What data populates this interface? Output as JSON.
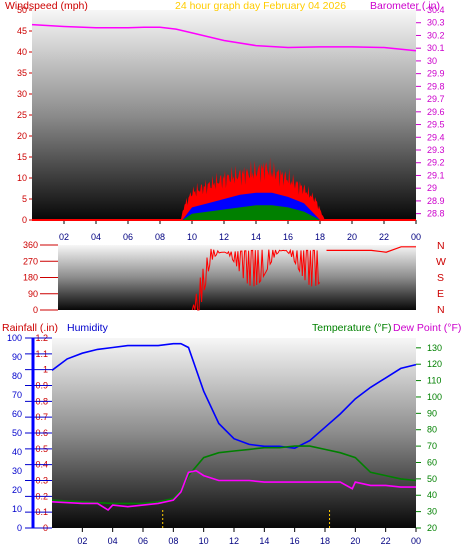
{
  "header": {
    "left_title": "Windspeed (mph)",
    "center_title": "24 hour graph day   February 04 2026",
    "right_title": "Barometer (.in)"
  },
  "panel3_titles": {
    "rain": "Rainfall (.in)",
    "humidity": "Humidity",
    "temp": "Temperature (°F)",
    "dew": "Dew Point (°F)"
  },
  "compass": [
    "N",
    "W",
    "S",
    "E",
    "N"
  ],
  "colors": {
    "wind_gust": "#ff0000",
    "wind_avg": "#0000ff",
    "wind_low": "#008000",
    "barometer": "#ff00ff",
    "direction": "#ff0000",
    "humidity": "#0000ff",
    "temperature": "#008000",
    "dewpoint": "#ff00ff",
    "rain": "#0000ff",
    "title_yellow": "#ffcc00",
    "accent_red": "#cc0000"
  },
  "chart_data": [
    {
      "type": "area",
      "title": "24 hour graph day   February 04 2026",
      "x_ticks": [
        "02",
        "04",
        "06",
        "08",
        "10",
        "12",
        "14",
        "16",
        "18",
        "20",
        "22",
        "00"
      ],
      "y_left_label": "Windspeed (mph)",
      "y_left_ticks": [
        0,
        5,
        10,
        15,
        20,
        25,
        30,
        35,
        40,
        45,
        50
      ],
      "y_right_label": "Barometer (.in)",
      "y_right_ticks": [
        "28.8",
        "28.9",
        "29",
        "29.1",
        "29.2",
        "29.3",
        "29.4",
        "29.5",
        "29.6",
        "29.7",
        "29.8",
        "29.9",
        "30",
        "30.1",
        "30.2",
        "30.3",
        "30.4"
      ],
      "series": [
        {
          "name": "Gust",
          "hours": [
            0,
            9.3,
            9.5,
            10,
            11,
            12,
            13,
            14,
            14.6,
            15,
            16,
            17,
            17.7,
            18,
            18.3,
            24
          ],
          "values": [
            0,
            0,
            4,
            8,
            10,
            12,
            13,
            14,
            15,
            14,
            12,
            9,
            6,
            3,
            0,
            0
          ]
        },
        {
          "name": "Average",
          "hours": [
            0,
            9.4,
            10,
            11,
            12,
            13,
            14,
            15,
            16,
            17,
            18,
            24
          ],
          "values": [
            0,
            0,
            3,
            4,
            5,
            6,
            6.5,
            6.5,
            5.5,
            4,
            0,
            0
          ]
        },
        {
          "name": "Lull",
          "hours": [
            0,
            9.4,
            10,
            11,
            12,
            13,
            14,
            15,
            16,
            17,
            18,
            24
          ],
          "values": [
            0,
            0,
            1.5,
            2,
            2.5,
            3,
            3.5,
            3.5,
            3,
            2,
            0,
            0
          ]
        },
        {
          "name": "Barometer",
          "hours": [
            0,
            2,
            4,
            6,
            7,
            8,
            9,
            10,
            12,
            14,
            16,
            18,
            20,
            22,
            24
          ],
          "values": [
            30.285,
            30.27,
            30.26,
            30.26,
            30.265,
            30.265,
            30.25,
            30.22,
            30.16,
            30.12,
            30.105,
            30.11,
            30.11,
            30.105,
            30.08
          ]
        }
      ]
    },
    {
      "type": "line",
      "x_ticks": [
        "02",
        "04",
        "06",
        "08",
        "10",
        "12",
        "14",
        "16",
        "18",
        "20",
        "22",
        "00"
      ],
      "y_ticks": [
        0,
        90,
        180,
        270,
        360
      ],
      "series": [
        {
          "name": "Wind direction",
          "hours": [
            9.0,
            9.6,
            10.2,
            11.0,
            12.0,
            13.0,
            14.0,
            15.0,
            16.0,
            17.0,
            18.0,
            19.0,
            20.0,
            21.0,
            22.0,
            23.0,
            24.0
          ],
          "values": [
            0,
            200,
            340,
            320,
            325,
            330,
            335,
            330,
            330,
            330,
            330,
            330,
            330,
            330,
            320,
            350,
            350
          ]
        }
      ]
    },
    {
      "type": "line",
      "x_ticks": [
        "02",
        "04",
        "06",
        "08",
        "10",
        "12",
        "14",
        "16",
        "18",
        "20",
        "22",
        "00"
      ],
      "y_left_ticks": [
        0,
        10,
        20,
        30,
        40,
        50,
        60,
        70,
        80,
        90,
        100
      ],
      "y_rain_ticks": [
        "0",
        "0.1",
        "0.2",
        "0.3",
        "0.4",
        "0.5",
        "0.6",
        "0.7",
        "0.8",
        "0.9",
        "1",
        "1.1",
        "1.2"
      ],
      "y_right_ticks": [
        20,
        30,
        40,
        50,
        60,
        70,
        80,
        90,
        100,
        110,
        120,
        130
      ],
      "series": [
        {
          "name": "Humidity",
          "hours": [
            0,
            1,
            2,
            3,
            4,
            5,
            6,
            7,
            8,
            8.5,
            9,
            10,
            11,
            12,
            13,
            14,
            15,
            16,
            17,
            18,
            19,
            20,
            21,
            22,
            23,
            24
          ],
          "values": [
            83,
            89,
            92,
            94,
            95,
            96,
            96,
            96,
            97,
            97,
            95,
            72,
            55,
            47,
            44,
            43,
            43,
            42,
            46,
            53,
            60,
            68,
            74,
            79,
            84,
            86
          ]
        },
        {
          "name": "Temperature",
          "hours": [
            0,
            2,
            4,
            5,
            6,
            7,
            8,
            8.5,
            9,
            10,
            11,
            12,
            13,
            14,
            15,
            16,
            17,
            18,
            19,
            20,
            21,
            22,
            23,
            24
          ],
          "values": [
            37,
            36,
            35,
            35,
            35,
            36,
            38,
            43,
            52,
            63,
            66,
            67,
            68,
            69,
            69,
            70,
            70,
            68,
            66,
            63,
            54,
            52,
            50,
            49
          ]
        },
        {
          "name": "Dew Point",
          "hours": [
            0,
            2,
            3,
            3.7,
            4,
            5,
            6,
            7,
            8,
            8.5,
            9,
            9.5,
            10,
            11,
            12,
            13,
            14,
            16,
            18,
            19,
            19.8,
            20,
            21,
            22,
            23,
            24
          ],
          "values": [
            36,
            35,
            35,
            31,
            34,
            33,
            34,
            35,
            37,
            42,
            54,
            55,
            52,
            49,
            49,
            49,
            48,
            48,
            48,
            48,
            44,
            48,
            46,
            46,
            45,
            45
          ]
        }
      ]
    }
  ]
}
